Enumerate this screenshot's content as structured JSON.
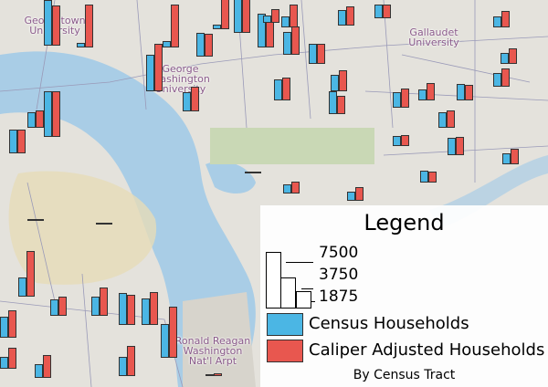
{
  "map": {
    "places": [
      "Georgetown University",
      "George Washington University",
      "Gallaudet University",
      "Ronald Reagan Washington Nat'l Arpt"
    ],
    "colors": {
      "census": "#4bb6e4",
      "caliper": "#e8574f",
      "water": "#a9cde6",
      "park": "#c9d8b5",
      "land": "#e4e2dc"
    },
    "tract_bars": [
      {
        "census": 6000,
        "caliper": 5300
      },
      {
        "census": 600,
        "caliper": 5700
      },
      {
        "census": 900,
        "caliper": 5700
      },
      {
        "census": 600,
        "caliper": 4200
      },
      {
        "census": 5200,
        "caliper": 5200
      },
      {
        "census": 4500,
        "caliper": 3800
      },
      {
        "census": 1500,
        "caliper": 3000
      },
      {
        "census": 2000,
        "caliper": 2600
      },
      {
        "census": 1000,
        "caliper": 1800
      },
      {
        "census": 1500,
        "caliper": 2200
      },
      {
        "census": 3000,
        "caliper": 3800
      },
      {
        "census": 2700,
        "caliper": 2700
      },
      {
        "census": 2200,
        "caliper": 2800
      },
      {
        "census": 1800,
        "caliper": 1800
      },
      {
        "census": 4800,
        "caliper": 6300
      },
      {
        "census": 3200,
        "caliper": 3000
      },
      {
        "census": 2500,
        "caliper": 3300
      },
      {
        "census": 2800,
        "caliper": 3000
      },
      {
        "census": 3000,
        "caliper": 2400
      },
      {
        "census": 2000,
        "caliper": 2500
      },
      {
        "census": 1500,
        "caliper": 2300
      },
      {
        "census": 6000,
        "caliper": 6000
      },
      {
        "census": 3200,
        "caliper": 3200
      },
      {
        "census": 2000,
        "caliper": 2300
      },
      {
        "census": 2200,
        "caliper": 2000
      },
      {
        "census": 1800,
        "caliper": 2400
      },
      {
        "census": 1500,
        "caliper": 2000
      },
      {
        "census": 2100,
        "caliper": 2300
      },
      {
        "census": 2300,
        "caliper": 2400
      },
      {
        "census": 1500,
        "caliper": 2100
      },
      {
        "census": 1300,
        "caliper": 1500
      },
      {
        "census": 1600,
        "caliper": 1400
      },
      {
        "census": 1200,
        "caliper": 1800
      },
      {
        "census": 300,
        "caliper": 300
      },
      {
        "census": 300,
        "caliper": 300
      },
      {
        "census": 300,
        "caliper": 300
      },
      {
        "census": 2500,
        "caliper": 6000
      },
      {
        "census": 2200,
        "caliper": 2600
      },
      {
        "census": 2600,
        "caliper": 3800
      },
      {
        "census": 4200,
        "caliper": 4000
      },
      {
        "census": 3500,
        "caliper": 4400
      },
      {
        "census": 4500,
        "caliper": 6800
      },
      {
        "census": 2800,
        "caliper": 3600
      },
      {
        "census": 300,
        "caliper": 400
      },
      {
        "census": 1600,
        "caliper": 2800
      },
      {
        "census": 1800,
        "caliper": 3000
      },
      {
        "census": 2500,
        "caliper": 4000
      },
      {
        "census": 1200,
        "caliper": 1600
      }
    ]
  },
  "legend": {
    "title": "Legend",
    "scale_values": [
      "7500",
      "3750",
      "1875"
    ],
    "items": [
      {
        "label": "Census Households",
        "color": "#4bb6e4"
      },
      {
        "label": "Caliper Adjusted Households",
        "color": "#e8574f"
      }
    ],
    "footer": "By Census Tract"
  }
}
